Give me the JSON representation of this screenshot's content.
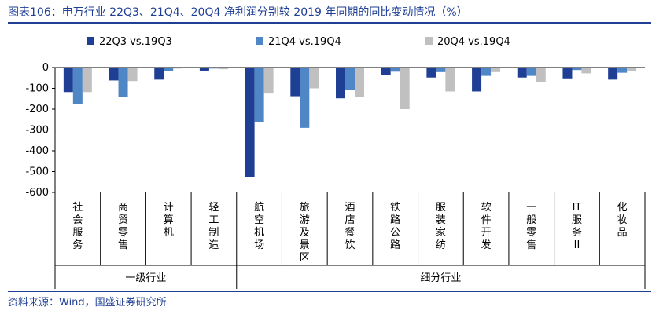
{
  "header": {
    "title": "图表106：申万行业 22Q3、21Q4、20Q4 净利润分别较 2019 年同期的同比变动情况（%）"
  },
  "footer": {
    "source": "资料来源：Wind，国盛证券研究所"
  },
  "chart_data": {
    "type": "bar",
    "title": "申万行业 22Q3、21Q4、20Q4 净利润分别较 2019 年同期的同比变动情况（%）",
    "xlabel": "",
    "ylabel": "",
    "ylim": [
      -600,
      0
    ],
    "yticks": [
      0,
      -100,
      -200,
      -300,
      -400,
      -500,
      -600
    ],
    "ytick_labels": [
      "0",
      "-100",
      "-200",
      "-300",
      "-400",
      "-500",
      "-600"
    ],
    "grid": false,
    "legend_position": "top",
    "categories": [
      "社会服务",
      "商贸零售",
      "计算机",
      "轻工制造",
      "航空机场",
      "旅游及景区",
      "酒店餐饮",
      "铁路公路",
      "服装家纺",
      "软件开发",
      "一般零售",
      "IT服务II",
      "化妆品"
    ],
    "category_groups": [
      {
        "label": "一级行业",
        "count": 4
      },
      {
        "label": "细分行业",
        "count": 9
      }
    ],
    "series": [
      {
        "name": "22Q3 vs.19Q3",
        "color": "#1f3f95",
        "values": [
          -118,
          -62,
          -58,
          -15,
          -525,
          -138,
          -148,
          -35,
          -48,
          -115,
          -48,
          -52,
          -58
        ]
      },
      {
        "name": "21Q4 vs.19Q4",
        "color": "#4f86c6",
        "values": [
          -175,
          -143,
          -18,
          -5,
          -263,
          -290,
          -108,
          -20,
          -22,
          -40,
          -40,
          -12,
          -25
        ]
      },
      {
        "name": "20Q4 vs.19Q4",
        "color": "#c0c0c0",
        "values": [
          -118,
          -65,
          -5,
          -8,
          -125,
          -100,
          -143,
          -200,
          -115,
          -22,
          -68,
          -28,
          -15
        ]
      }
    ]
  }
}
